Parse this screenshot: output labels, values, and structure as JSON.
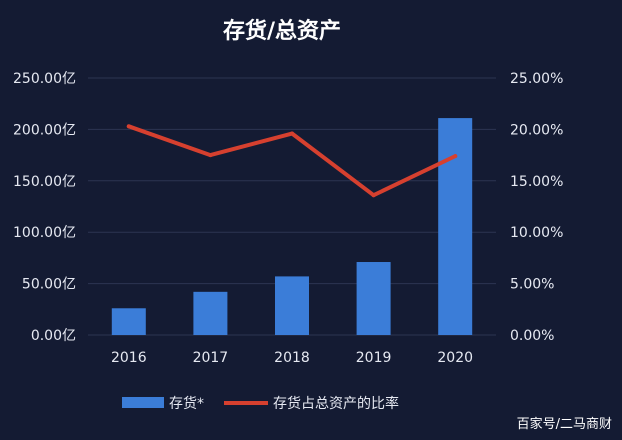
{
  "chart_data": {
    "type": "bar",
    "title": "存货/总资产",
    "categories": [
      "2016",
      "2017",
      "2018",
      "2019",
      "2020"
    ],
    "series": [
      {
        "name": "存货*",
        "type": "bar",
        "axis": "left",
        "values": [
          26,
          42,
          57,
          71,
          211
        ],
        "color": "#3b7dd8"
      },
      {
        "name": "存货占总资产的比率",
        "type": "line",
        "axis": "right",
        "values": [
          20.3,
          17.5,
          19.6,
          13.6,
          17.4
        ],
        "color": "#d6402f"
      }
    ],
    "y_left": {
      "ylim": [
        0,
        250
      ],
      "ticks": [
        "0.00亿",
        "50.00亿",
        "100.00亿",
        "150.00亿",
        "200.00亿",
        "250.00亿"
      ]
    },
    "y_right": {
      "ylim": [
        0,
        25
      ],
      "ticks": [
        "0.00%",
        "5.00%",
        "10.00%",
        "15.00%",
        "20.00%",
        "25.00%"
      ]
    },
    "grid": true,
    "legend": "bottom"
  },
  "watermark": "百家号/二马商财"
}
